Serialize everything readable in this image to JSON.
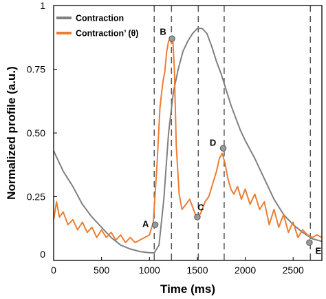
{
  "chart_data": {
    "type": "line",
    "xlabel": "Time (ms)",
    "ylabel": "Normalized profile (a.u.)",
    "xlim": [
      0,
      2800
    ],
    "ylim": [
      0,
      1.0
    ],
    "x_ticks": [
      {
        "value": 0,
        "label": "0"
      },
      {
        "value": 500,
        "label": "500"
      },
      {
        "value": 1000,
        "label": "1000"
      },
      {
        "value": 1500,
        "label": "1500"
      },
      {
        "value": 2000,
        "label": "2000"
      },
      {
        "value": 2500,
        "label": "2500"
      }
    ],
    "y_ticks": [
      {
        "value": 0,
        "label": "0"
      },
      {
        "value": 0.25,
        "label": "0.25"
      },
      {
        "value": 0.5,
        "label": "0.50"
      },
      {
        "value": 0.75,
        "label": "0.75"
      },
      {
        "value": 1.0,
        "label": "1"
      }
    ],
    "legend_position": "top-left",
    "series": [
      {
        "name": "Contraction",
        "color": "#808080",
        "x": [
          0,
          100,
          200,
          300,
          400,
          500,
          600,
          700,
          800,
          900,
          1000,
          1050,
          1100,
          1150,
          1200,
          1250,
          1300,
          1350,
          1400,
          1450,
          1500,
          1550,
          1600,
          1650,
          1700,
          1750,
          1800,
          1850,
          1900,
          1950,
          2000,
          2100,
          2200,
          2300,
          2400,
          2500,
          2600,
          2700,
          2800
        ],
        "y": [
          0.43,
          0.35,
          0.29,
          0.22,
          0.17,
          0.13,
          0.09,
          0.06,
          0.045,
          0.035,
          0.03,
          0.03,
          0.06,
          0.24,
          0.5,
          0.66,
          0.75,
          0.82,
          0.86,
          0.89,
          0.91,
          0.91,
          0.89,
          0.84,
          0.78,
          0.73,
          0.67,
          0.61,
          0.56,
          0.51,
          0.47,
          0.4,
          0.32,
          0.24,
          0.18,
          0.14,
          0.11,
          0.085,
          0.075
        ]
      },
      {
        "name": "Contraction’ (θ)",
        "color": "#ED7D31",
        "x": [
          0,
          30,
          60,
          100,
          150,
          200,
          250,
          300,
          350,
          400,
          450,
          500,
          550,
          600,
          650,
          700,
          750,
          800,
          850,
          900,
          950,
          1000,
          1040,
          1080,
          1110,
          1140,
          1160,
          1180,
          1200,
          1215,
          1230,
          1245,
          1260,
          1280,
          1310,
          1340,
          1380,
          1420,
          1460,
          1500,
          1540,
          1580,
          1620,
          1660,
          1700,
          1730,
          1760,
          1790,
          1820,
          1850,
          1880,
          1920,
          1960,
          2000,
          2050,
          2100,
          2150,
          2200,
          2250,
          2300,
          2350,
          2400,
          2450,
          2500,
          2550,
          2600,
          2650,
          2700,
          2750,
          2800
        ],
        "y": [
          0.16,
          0.23,
          0.17,
          0.19,
          0.14,
          0.16,
          0.12,
          0.15,
          0.11,
          0.13,
          0.09,
          0.12,
          0.09,
          0.11,
          0.08,
          0.1,
          0.07,
          0.09,
          0.07,
          0.08,
          0.09,
          0.1,
          0.15,
          0.38,
          0.6,
          0.7,
          0.74,
          0.82,
          0.86,
          0.87,
          0.85,
          0.86,
          0.75,
          0.45,
          0.26,
          0.2,
          0.22,
          0.24,
          0.2,
          0.16,
          0.19,
          0.23,
          0.25,
          0.3,
          0.35,
          0.4,
          0.42,
          0.38,
          0.32,
          0.28,
          0.26,
          0.29,
          0.24,
          0.28,
          0.22,
          0.26,
          0.2,
          0.23,
          0.14,
          0.2,
          0.13,
          0.18,
          0.11,
          0.15,
          0.09,
          0.12,
          0.1,
          0.09,
          0.1,
          0.09
        ]
      }
    ],
    "vertical_lines": [
      1050,
      1230,
      1510,
      1780,
      2680
    ],
    "annotations": [
      {
        "label": "A",
        "x": 1060,
        "y": 0.14
      },
      {
        "label": "B",
        "x": 1235,
        "y": 0.87
      },
      {
        "label": "C",
        "x": 1500,
        "y": 0.17
      },
      {
        "label": "D",
        "x": 1770,
        "y": 0.44
      },
      {
        "label": "E",
        "x": 2670,
        "y": 0.07
      }
    ]
  }
}
